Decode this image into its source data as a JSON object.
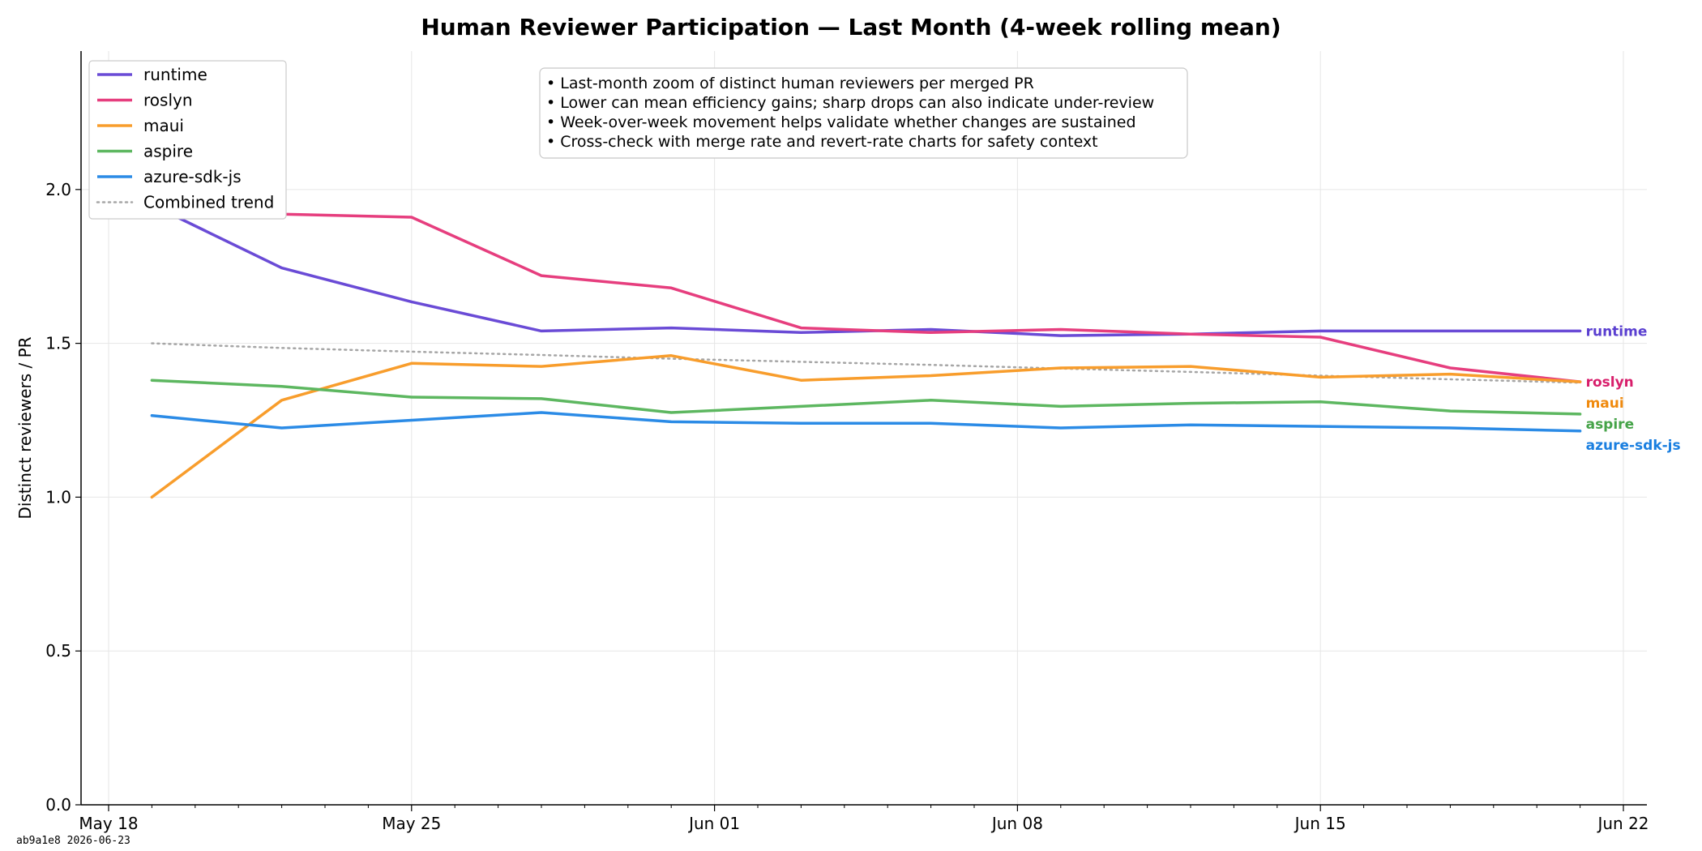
{
  "footer": {
    "stamp": "ab9a1e8  2026-06-23"
  },
  "notes": [
    "• Last-month zoom of distinct human reviewers per merged PR",
    "• Lower can mean efficiency gains; sharp drops can also indicate under-review",
    "• Week-over-week movement helps validate whether changes are sustained",
    "• Cross-check with merge rate and revert-rate charts for safety context"
  ],
  "chart_data": {
    "type": "line",
    "title": "Human Reviewer Participation — Last Month (4-week rolling mean)",
    "xlabel": "",
    "ylabel": "Distinct reviewers / PR",
    "ylim": [
      0,
      2.45
    ],
    "xlim": [
      "2026-05-18",
      "2026-06-22"
    ],
    "y_ticks": [
      "0.0",
      "0.5",
      "1.0",
      "1.5",
      "2.0"
    ],
    "x_ticks": [
      {
        "date": "2026-05-18",
        "label": "May 18"
      },
      {
        "date": "2026-05-25",
        "label": "May 25"
      },
      {
        "date": "2026-06-01",
        "label": "Jun 01"
      },
      {
        "date": "2026-06-08",
        "label": "Jun 08"
      },
      {
        "date": "2026-06-15",
        "label": "Jun 15"
      },
      {
        "date": "2026-06-22",
        "label": "Jun 22"
      }
    ],
    "grid": true,
    "legend_position": "top-left",
    "x": [
      "2026-05-19",
      "2026-05-22",
      "2026-05-25",
      "2026-05-28",
      "2026-05-31",
      "2026-06-03",
      "2026-06-06",
      "2026-06-09",
      "2026-06-12",
      "2026-06-15",
      "2026-06-18",
      "2026-06-21"
    ],
    "series": [
      {
        "name": "runtime",
        "color": "#6a4bd6",
        "values": [
          1.95,
          1.745,
          1.635,
          1.54,
          1.55,
          1.535,
          1.545,
          1.525,
          1.53,
          1.54,
          1.54,
          1.54
        ]
      },
      {
        "name": "roslyn",
        "color": "#e63e7e",
        "values": [
          1.925,
          1.92,
          1.91,
          1.72,
          1.68,
          1.55,
          1.535,
          1.545,
          1.53,
          1.52,
          1.42,
          1.375
        ]
      },
      {
        "name": "maui",
        "color": "#f89d2c",
        "values": [
          1.0,
          1.315,
          1.435,
          1.425,
          1.46,
          1.38,
          1.395,
          1.42,
          1.425,
          1.39,
          1.4,
          1.375
        ]
      },
      {
        "name": "aspire",
        "color": "#5db760",
        "values": [
          1.38,
          1.36,
          1.325,
          1.32,
          1.275,
          1.295,
          1.315,
          1.295,
          1.305,
          1.31,
          1.28,
          1.27
        ]
      },
      {
        "name": "azure-sdk-js",
        "color": "#2b8be6",
        "values": [
          1.265,
          1.225,
          1.25,
          1.275,
          1.245,
          1.24,
          1.24,
          1.225,
          1.235,
          1.23,
          1.225,
          1.215
        ]
      }
    ],
    "trend": {
      "name": "Combined trend",
      "color": "#a6a6a6",
      "values": [
        1.5,
        1.485,
        1.473,
        1.462,
        1.45,
        1.44,
        1.43,
        1.418,
        1.407,
        1.395,
        1.383,
        1.372
      ]
    },
    "end_label_colors": {
      "runtime": "#5a3fd0",
      "roslyn": "#d81e6b",
      "maui": "#f08a0e",
      "aspire": "#45a348",
      "azure-sdk-js": "#1a7fe0"
    }
  }
}
